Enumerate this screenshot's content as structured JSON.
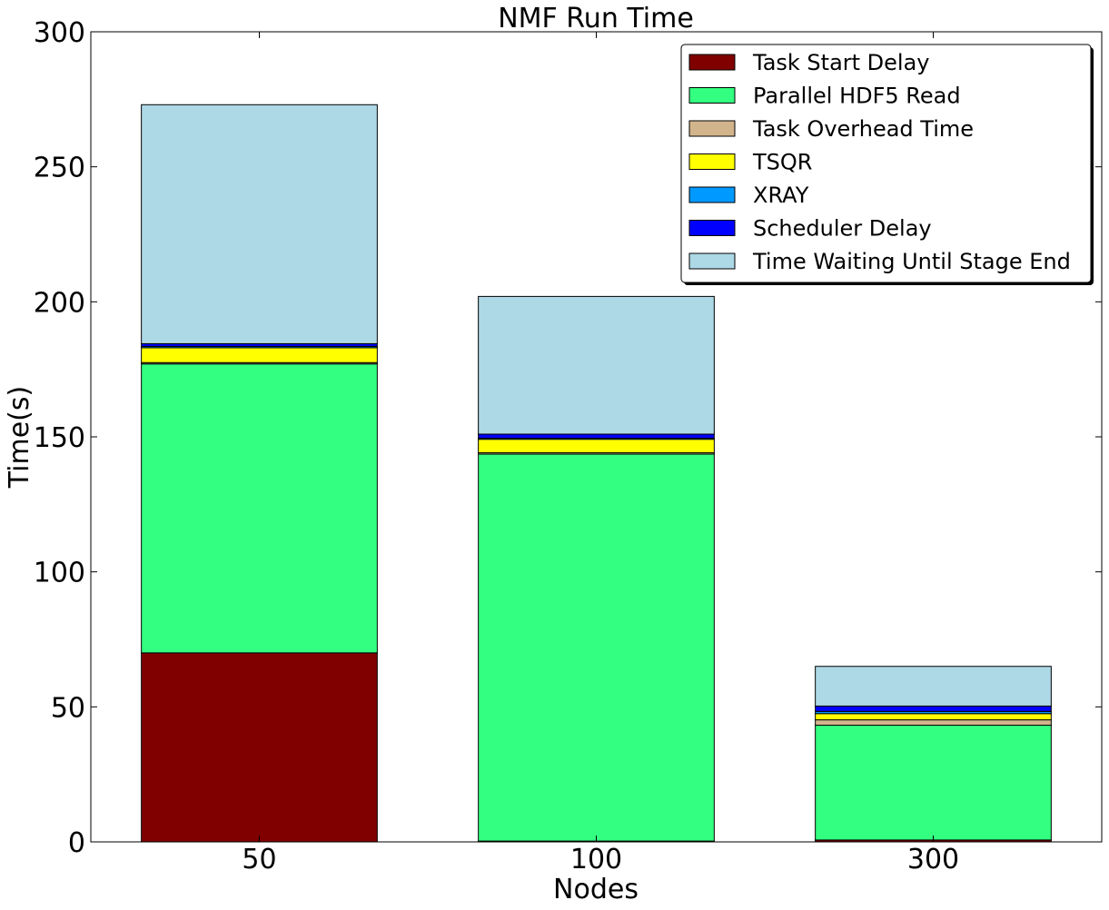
{
  "chart_data": {
    "type": "bar",
    "stacked": true,
    "title": "NMF Run Time",
    "xlabel": "Nodes",
    "ylabel": "Time(s)",
    "ylim": [
      0,
      300
    ],
    "yticks": [
      "0",
      "50",
      "100",
      "150",
      "200",
      "250",
      "300"
    ],
    "categories": [
      "50",
      "100",
      "300"
    ],
    "grid": false,
    "legend_position": "top-right",
    "series": [
      {
        "name": "Task Start Delay",
        "color": "#800000",
        "values": [
          70,
          0.3,
          0.7
        ]
      },
      {
        "name": "Parallel HDF5 Read",
        "color": "#33ff80",
        "values": [
          107,
          143.3,
          42.5
        ]
      },
      {
        "name": "Task Overhead Time",
        "color": "#d2b48c",
        "values": [
          0.5,
          0.5,
          2
        ]
      },
      {
        "name": "TSQR",
        "color": "#ffff00",
        "values": [
          5.5,
          5,
          2.3
        ]
      },
      {
        "name": "XRAY",
        "color": "#0099ff",
        "values": [
          0.5,
          0.4,
          0.8
        ]
      },
      {
        "name": "Scheduler Delay",
        "color": "#0000ff",
        "values": [
          1,
          1.5,
          2
        ]
      },
      {
        "name": "Time Waiting Until Stage End",
        "color": "#add8e6",
        "values": [
          88.5,
          51,
          14.7
        ]
      }
    ]
  }
}
